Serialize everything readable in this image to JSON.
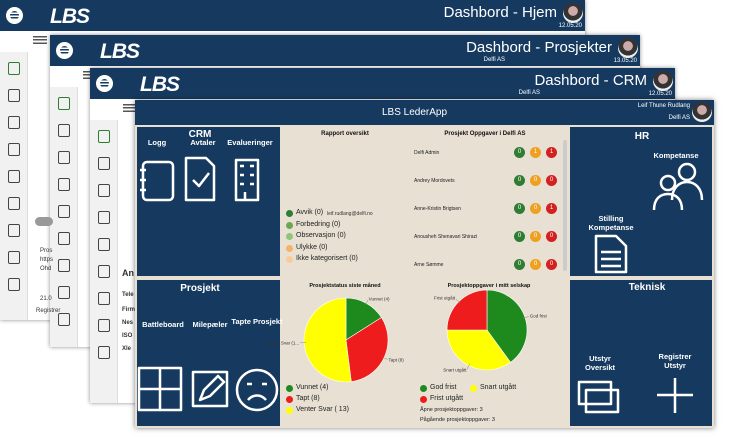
{
  "windows": [
    {
      "logo": "LBS",
      "title": "Dashbord - Hjem",
      "date": "12.05.20",
      "fragments": [
        "Pros",
        "https",
        "Ohd",
        "21.0",
        "Registrer"
      ]
    },
    {
      "logo": "LBS",
      "title": "Dashbord - Prosjekter",
      "company": "Delfi AS",
      "date": "13.05.20"
    },
    {
      "logo": "LBS",
      "title": "Dashbord - CRM",
      "company": "Delfi AS",
      "date": "12.05.20",
      "fragments": [
        "An",
        "Tele",
        "Firm",
        "Nes",
        "ISO",
        "Xle"
      ]
    }
  ],
  "app": {
    "title": "LBS LederApp",
    "user": "Leif Thune Rudlang",
    "company": "Delfi AS"
  },
  "crm": {
    "title": "CRM",
    "items": [
      "Logg",
      "Avtaler",
      "Evalueringer"
    ]
  },
  "report": {
    "title": "Rapport oversikt",
    "email": "leif.rudlang@delfi.no",
    "legend": [
      {
        "label": "Avvik (0)",
        "color": "#2e7d32"
      },
      {
        "label": "Forbedring (0)",
        "color": "#6aa84f"
      },
      {
        "label": "Observasjon (0)",
        "color": "#93c47d"
      },
      {
        "label": "Ulykke (0)",
        "color": "#f6b26b"
      },
      {
        "label": "Ikke kategorisert (0)",
        "color": "#f9cb9c"
      }
    ]
  },
  "tasks": {
    "title": "Prosjekt Oppgaver i Delfi AS",
    "rows": [
      {
        "name": "Delfi Admin",
        "counts": [
          0,
          1,
          1
        ]
      },
      {
        "name": "Andrey Mordovets",
        "counts": [
          0,
          0,
          0
        ]
      },
      {
        "name": "Anne-Kristin Brigtsen",
        "counts": [
          0,
          0,
          1
        ]
      },
      {
        "name": "Anousheh Shenavari Shirazi",
        "counts": [
          0,
          0,
          0
        ]
      },
      {
        "name": "Arne Sømme",
        "counts": [
          0,
          0,
          0
        ]
      }
    ]
  },
  "hr": {
    "title": "HR",
    "items": [
      "Kompetanse",
      "Stilling Kompetanse"
    ]
  },
  "project": {
    "title": "Prosjekt",
    "items": [
      "Battleboard",
      "Milepæler",
      "Tapte Prosjekt"
    ]
  },
  "technical": {
    "title": "Teknisk",
    "items": [
      "Utstyr Oversikt",
      "Registrer Utstyr"
    ]
  },
  "chart_data": [
    {
      "type": "pie",
      "title": "Prosjektstatus siste måned",
      "categories": [
        "Vunnet (4)",
        "Tapt (8)",
        "Venter Svar ( 13)"
      ],
      "values": [
        4,
        8,
        13
      ],
      "colors": [
        "#1e8a1e",
        "#ee1c1c",
        "#ffff00"
      ],
      "slice_labels": [
        "Vunnet (4)",
        "Tapt (8)",
        "Venter Svar (1..."
      ]
    },
    {
      "type": "pie",
      "title": "Prosjektoppgaver i mitt selskap",
      "categories": [
        "God frist",
        "Snart utgått",
        "Frist utgått"
      ],
      "values": [
        40,
        35,
        25
      ],
      "colors": [
        "#1e8a1e",
        "#ffff00",
        "#ee1c1c"
      ],
      "slice_labels": [
        "God frist",
        "Snart utgått",
        "Frist utgått"
      ],
      "notes": [
        "Åpne prosjektoppgaver: 3",
        "Pågående prosjektoppgaver: 3"
      ]
    }
  ]
}
